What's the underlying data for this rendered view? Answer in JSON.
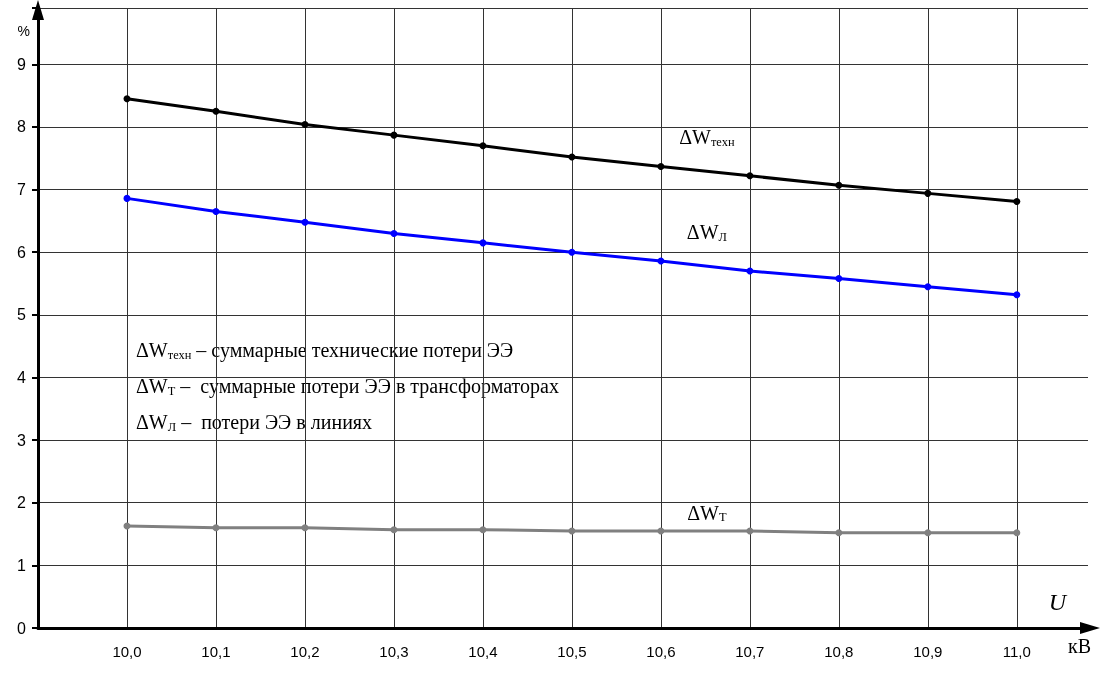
{
  "chart_data": {
    "type": "line",
    "xlabel": "U",
    "ylabel": "%",
    "x": [
      10.0,
      10.1,
      10.2,
      10.3,
      10.4,
      10.5,
      10.6,
      10.7,
      10.8,
      10.9,
      11.0
    ],
    "series": [
      {
        "name": "ΔW$_{техн}$",
        "color": "#000000",
        "values": [
          8.45,
          8.25,
          8.04,
          7.87,
          7.7,
          7.52,
          7.37,
          7.22,
          7.07,
          6.94,
          6.81
        ]
      },
      {
        "name": "ΔW$_{Л}$",
        "color": "#0000ff",
        "values": [
          6.86,
          6.65,
          6.48,
          6.3,
          6.15,
          6.0,
          5.86,
          5.7,
          5.58,
          5.45,
          5.32
        ]
      },
      {
        "name": "ΔW$_{Т}$",
        "color": "#808080",
        "values": [
          1.63,
          1.6,
          1.6,
          1.57,
          1.57,
          1.55,
          1.55,
          1.55,
          1.52,
          1.52,
          1.52
        ]
      }
    ],
    "xlim": [
      9.9,
      11.08
    ],
    "ylim": [
      0,
      9.9
    ],
    "xticks": [
      {
        "value": 10.0,
        "label": "10,0"
      },
      {
        "value": 10.1,
        "label": "10,1"
      },
      {
        "value": 10.2,
        "label": "10,2"
      },
      {
        "value": 10.3,
        "label": "10,3"
      },
      {
        "value": 10.4,
        "label": "10,4"
      },
      {
        "value": 10.5,
        "label": "10,5"
      },
      {
        "value": 10.6,
        "label": "10,6"
      },
      {
        "value": 10.7,
        "label": "10,7"
      },
      {
        "value": 10.8,
        "label": "10,8"
      },
      {
        "value": 10.9,
        "label": "10,9"
      },
      {
        "value": 11.0,
        "label": "11,0"
      }
    ],
    "yticks": [
      0,
      1,
      2,
      3,
      4,
      5,
      6,
      7,
      8,
      9
    ],
    "annotations": [
      "кВ",
      "ΔW$_{техн}$ – суммарные технические потери ЭЭ",
      "ΔW$_{Т}$ –  суммарные потери ЭЭ в трансформаторах",
      "ΔW$_{Л}$ –  потери ЭЭ в линиях"
    ],
    "grid": true,
    "legend": false,
    "marker": "circle",
    "line_style": "solid"
  }
}
